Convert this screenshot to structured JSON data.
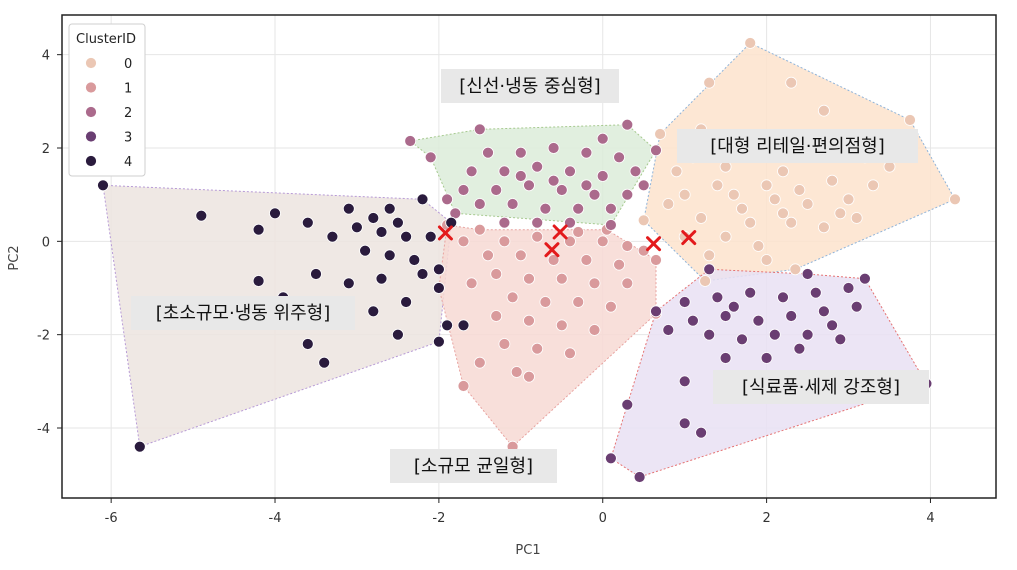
{
  "chart_data": {
    "type": "scatter",
    "xlabel": "PC1",
    "ylabel": "PC2",
    "xlim": [
      -6.6,
      4.8
    ],
    "ylim": [
      -5.5,
      4.85
    ],
    "xticks": [
      -6,
      -4,
      -2,
      0,
      2,
      4
    ],
    "yticks": [
      4,
      2,
      0,
      -2,
      -4
    ],
    "grid": true,
    "legend": {
      "title": "ClusterID",
      "placement": "top-left",
      "entries": [
        "0",
        "1",
        "2",
        "3",
        "4"
      ]
    },
    "colors": {
      "0": "#ebc7b4",
      "1": "#d99a9c",
      "2": "#ab6a8c",
      "3": "#6a3e72",
      "4": "#2a1b3d",
      "centroid": "#e31a1c"
    },
    "hull_fills": {
      "0": "#fde3cd",
      "1": "#f7d9d4",
      "2": "#dcecd9",
      "3": "#e9e1f3",
      "4": "#ece4df"
    },
    "hull_strokes": {
      "0": "#8fb3d9",
      "1": "#e8a3a0",
      "2": "#a6c98f",
      "3": "#e57373",
      "4": "#b79ad6"
    },
    "hulls": [
      {
        "cluster": "4",
        "points": [
          [
            -6.1,
            1.2
          ],
          [
            -2.2,
            0.9
          ],
          [
            -1.85,
            0.4
          ],
          [
            -2.0,
            -2.15
          ],
          [
            -5.65,
            -4.4
          ]
        ]
      },
      {
        "cluster": "2",
        "points": [
          [
            -2.35,
            2.15
          ],
          [
            -1.5,
            2.4
          ],
          [
            0.3,
            2.5
          ],
          [
            0.65,
            1.95
          ],
          [
            0.1,
            0.35
          ],
          [
            -1.8,
            0.6
          ],
          [
            -2.1,
            1.8
          ]
        ]
      },
      {
        "cluster": "1",
        "points": [
          [
            -1.9,
            0.35
          ],
          [
            -1.5,
            0.25
          ],
          [
            0.05,
            0.25
          ],
          [
            0.65,
            -0.4
          ],
          [
            0.65,
            -1.55
          ],
          [
            -1.1,
            -4.4
          ],
          [
            -1.7,
            -3.1
          ],
          [
            -2.0,
            -1.0
          ]
        ]
      },
      {
        "cluster": "0",
        "points": [
          [
            1.8,
            4.25
          ],
          [
            3.75,
            2.6
          ],
          [
            4.3,
            0.9
          ],
          [
            2.35,
            -0.6
          ],
          [
            1.25,
            -0.85
          ],
          [
            0.5,
            0.45
          ],
          [
            0.7,
            2.3
          ]
        ]
      },
      {
        "cluster": "3",
        "points": [
          [
            1.3,
            -0.6
          ],
          [
            2.5,
            -0.7
          ],
          [
            3.2,
            -0.8
          ],
          [
            3.95,
            -3.05
          ],
          [
            0.45,
            -5.05
          ],
          [
            0.1,
            -4.65
          ],
          [
            0.65,
            -1.5
          ]
        ]
      }
    ],
    "series": [
      {
        "name": "0",
        "points": [
          [
            1.8,
            4.25
          ],
          [
            3.75,
            2.6
          ],
          [
            4.3,
            0.9
          ],
          [
            1.3,
            3.4
          ],
          [
            2.3,
            3.4
          ],
          [
            2.7,
            2.8
          ],
          [
            1.2,
            2.4
          ],
          [
            2.0,
            2.0
          ],
          [
            2.6,
            2.2
          ],
          [
            3.2,
            1.8
          ],
          [
            3.5,
            1.6
          ],
          [
            0.9,
            1.5
          ],
          [
            1.5,
            1.6
          ],
          [
            2.2,
            1.5
          ],
          [
            2.8,
            1.3
          ],
          [
            1.0,
            1.0
          ],
          [
            1.6,
            1.0
          ],
          [
            2.1,
            0.9
          ],
          [
            2.5,
            0.8
          ],
          [
            3.0,
            0.9
          ],
          [
            1.2,
            0.5
          ],
          [
            1.8,
            0.4
          ],
          [
            2.3,
            0.4
          ],
          [
            2.7,
            0.3
          ],
          [
            3.1,
            0.5
          ],
          [
            1.0,
            0.1
          ],
          [
            1.5,
            0.1
          ],
          [
            1.9,
            -0.1
          ],
          [
            2.35,
            -0.6
          ],
          [
            1.25,
            -0.85
          ],
          [
            0.5,
            0.45
          ],
          [
            0.7,
            2.3
          ],
          [
            1.4,
            1.2
          ],
          [
            2.0,
            1.2
          ],
          [
            2.4,
            1.1
          ],
          [
            1.7,
            0.7
          ],
          [
            2.2,
            0.6
          ],
          [
            0.8,
            0.8
          ],
          [
            1.1,
            1.8
          ],
          [
            1.6,
            2.0
          ],
          [
            3.3,
            1.2
          ],
          [
            2.9,
            0.6
          ],
          [
            1.3,
            -0.3
          ],
          [
            2.0,
            -0.4
          ]
        ]
      },
      {
        "name": "1",
        "points": [
          [
            -1.9,
            0.35
          ],
          [
            -1.5,
            0.25
          ],
          [
            0.05,
            0.25
          ],
          [
            0.65,
            -0.4
          ],
          [
            0.65,
            -1.55
          ],
          [
            -1.1,
            -4.4
          ],
          [
            -1.7,
            -3.1
          ],
          [
            -2.0,
            -1.0
          ],
          [
            -1.2,
            0.0
          ],
          [
            -0.8,
            0.1
          ],
          [
            -0.4,
            0.0
          ],
          [
            0.0,
            0.0
          ],
          [
            0.3,
            -0.1
          ],
          [
            -1.4,
            -0.3
          ],
          [
            -1.0,
            -0.3
          ],
          [
            -0.6,
            -0.4
          ],
          [
            -0.2,
            -0.4
          ],
          [
            0.2,
            -0.5
          ],
          [
            -1.3,
            -0.7
          ],
          [
            -0.9,
            -0.8
          ],
          [
            -0.5,
            -0.8
          ],
          [
            -0.1,
            -0.9
          ],
          [
            0.3,
            -0.9
          ],
          [
            -1.1,
            -1.2
          ],
          [
            -0.7,
            -1.3
          ],
          [
            -0.3,
            -1.3
          ],
          [
            0.1,
            -1.4
          ],
          [
            -0.9,
            -1.7
          ],
          [
            -0.5,
            -1.8
          ],
          [
            -0.1,
            -1.9
          ],
          [
            -1.2,
            -2.2
          ],
          [
            -0.8,
            -2.3
          ],
          [
            -0.4,
            -2.4
          ],
          [
            -1.5,
            -2.6
          ],
          [
            -0.9,
            -2.9
          ],
          [
            -1.3,
            -1.6
          ],
          [
            -1.6,
            -0.9
          ],
          [
            -1.7,
            0.0
          ],
          [
            0.5,
            -0.2
          ],
          [
            -0.3,
            0.2
          ],
          [
            -1.05,
            -2.8
          ]
        ]
      },
      {
        "name": "2",
        "points": [
          [
            -2.35,
            2.15
          ],
          [
            -1.5,
            2.4
          ],
          [
            0.3,
            2.5
          ],
          [
            0.65,
            1.95
          ],
          [
            0.1,
            0.35
          ],
          [
            -1.8,
            0.6
          ],
          [
            -2.1,
            1.8
          ],
          [
            -1.4,
            1.9
          ],
          [
            -1.0,
            1.9
          ],
          [
            -0.6,
            2.0
          ],
          [
            -0.2,
            1.9
          ],
          [
            0.2,
            1.8
          ],
          [
            -1.6,
            1.5
          ],
          [
            -1.2,
            1.5
          ],
          [
            -0.8,
            1.6
          ],
          [
            -0.4,
            1.5
          ],
          [
            0.0,
            1.4
          ],
          [
            0.4,
            1.5
          ],
          [
            -1.7,
            1.1
          ],
          [
            -1.3,
            1.1
          ],
          [
            -0.9,
            1.2
          ],
          [
            -0.5,
            1.1
          ],
          [
            -0.1,
            1.0
          ],
          [
            0.3,
            1.0
          ],
          [
            -1.5,
            0.8
          ],
          [
            -1.1,
            0.8
          ],
          [
            -0.7,
            0.7
          ],
          [
            -0.3,
            0.7
          ],
          [
            0.1,
            0.7
          ],
          [
            -1.2,
            0.4
          ],
          [
            -0.8,
            0.4
          ],
          [
            -0.4,
            0.4
          ],
          [
            -1.0,
            1.4
          ],
          [
            -0.6,
            1.3
          ],
          [
            -0.2,
            1.2
          ],
          [
            0.5,
            1.2
          ],
          [
            -1.9,
            0.9
          ],
          [
            0.0,
            2.2
          ]
        ]
      },
      {
        "name": "3",
        "points": [
          [
            1.3,
            -0.6
          ],
          [
            2.5,
            -0.7
          ],
          [
            3.2,
            -0.8
          ],
          [
            3.95,
            -3.05
          ],
          [
            0.45,
            -5.05
          ],
          [
            0.1,
            -4.65
          ],
          [
            0.65,
            -1.5
          ],
          [
            1.0,
            -1.3
          ],
          [
            1.4,
            -1.2
          ],
          [
            1.8,
            -1.1
          ],
          [
            2.2,
            -1.2
          ],
          [
            2.6,
            -1.1
          ],
          [
            3.0,
            -1.0
          ],
          [
            1.1,
            -1.7
          ],
          [
            1.5,
            -1.6
          ],
          [
            1.9,
            -1.7
          ],
          [
            2.3,
            -1.6
          ],
          [
            2.7,
            -1.5
          ],
          [
            1.3,
            -2.0
          ],
          [
            1.7,
            -2.1
          ],
          [
            2.1,
            -2.0
          ],
          [
            2.5,
            -2.0
          ],
          [
            2.9,
            -2.1
          ],
          [
            0.8,
            -1.9
          ],
          [
            1.5,
            -2.5
          ],
          [
            2.0,
            -2.5
          ],
          [
            2.4,
            -2.3
          ],
          [
            1.0,
            -3.0
          ],
          [
            0.3,
            -3.5
          ],
          [
            1.0,
            -3.9
          ],
          [
            1.2,
            -4.1
          ],
          [
            1.6,
            -1.4
          ],
          [
            2.8,
            -1.8
          ],
          [
            3.1,
            -1.4
          ]
        ]
      },
      {
        "name": "4",
        "points": [
          [
            -6.1,
            1.2
          ],
          [
            -2.2,
            0.9
          ],
          [
            -1.85,
            0.4
          ],
          [
            -2.0,
            -2.15
          ],
          [
            -5.65,
            -4.4
          ],
          [
            -4.9,
            0.55
          ],
          [
            -4.0,
            0.6
          ],
          [
            -4.2,
            0.25
          ],
          [
            -3.6,
            0.4
          ],
          [
            -3.1,
            0.7
          ],
          [
            -2.8,
            0.5
          ],
          [
            -2.5,
            0.4
          ],
          [
            -2.7,
            0.2
          ],
          [
            -2.4,
            0.1
          ],
          [
            -2.1,
            0.1
          ],
          [
            -3.3,
            0.1
          ],
          [
            -2.9,
            -0.2
          ],
          [
            -2.6,
            -0.3
          ],
          [
            -2.3,
            -0.4
          ],
          [
            -2.0,
            -0.6
          ],
          [
            -3.5,
            -0.7
          ],
          [
            -3.1,
            -0.9
          ],
          [
            -2.7,
            -0.8
          ],
          [
            -2.4,
            -1.3
          ],
          [
            -2.0,
            -1.0
          ],
          [
            -3.9,
            -1.2
          ],
          [
            -3.1,
            -1.6
          ],
          [
            -2.5,
            -2.0
          ],
          [
            -1.7,
            -1.8
          ],
          [
            -3.6,
            -2.2
          ],
          [
            -3.4,
            -2.6
          ],
          [
            -4.2,
            -0.85
          ],
          [
            -2.2,
            -0.7
          ],
          [
            -3.0,
            0.3
          ],
          [
            -2.6,
            0.7
          ],
          [
            -1.9,
            -1.8
          ],
          [
            -2.8,
            -1.5
          ]
        ]
      }
    ],
    "centroids": [
      [
        -1.92,
        0.18
      ],
      [
        -0.62,
        -0.18
      ],
      [
        -0.52,
        0.2
      ],
      [
        0.62,
        -0.05
      ],
      [
        1.05,
        0.08
      ]
    ],
    "annotations": [
      {
        "text": "[신선·냉동 중심형]"
      },
      {
        "text": "[대형 리테일·편의점형]"
      },
      {
        "text": "[초소규모·냉동 위주형]"
      },
      {
        "text": "[식료품·세제 강조형]"
      },
      {
        "text": "[소규모 균일형]"
      }
    ]
  }
}
